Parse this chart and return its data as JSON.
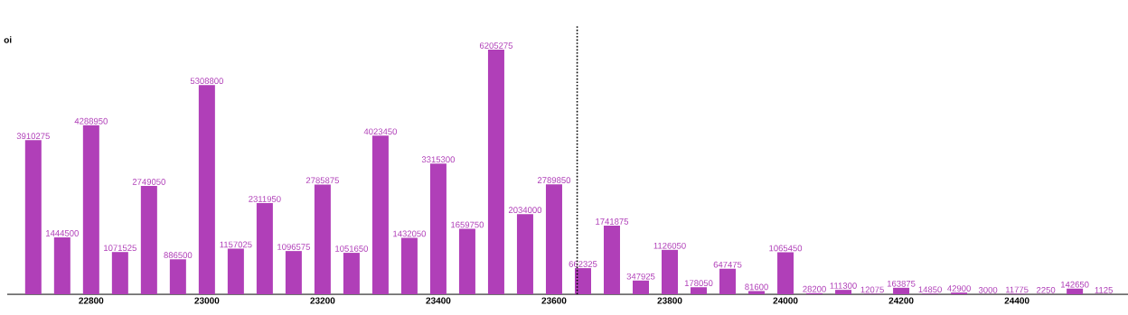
{
  "chart_data": {
    "type": "bar",
    "ylabel": "oi",
    "x": [
      22700,
      22750,
      22800,
      22850,
      22900,
      22950,
      23000,
      23050,
      23100,
      23150,
      23200,
      23250,
      23300,
      23350,
      23400,
      23450,
      23500,
      23550,
      23600,
      23650,
      23700,
      23750,
      23800,
      23850,
      23900,
      23950,
      24000,
      24050,
      24100,
      24150,
      24200,
      24250,
      24300,
      24350,
      24400,
      24450,
      24500,
      24550
    ],
    "values": [
      3910275,
      1444500,
      4288950,
      1071525,
      2749050,
      886500,
      5308800,
      1157025,
      2311950,
      1096575,
      2785875,
      1051650,
      4023450,
      1432050,
      3315300,
      1659750,
      6205275,
      2034000,
      2789850,
      662325,
      1741875,
      347925,
      1126050,
      178050,
      647475,
      81600,
      1065450,
      28200,
      111300,
      12075,
      163875,
      14850,
      42900,
      3000,
      11775,
      2250,
      142650,
      1125
    ],
    "color": "#b03fb8",
    "data_labels": true,
    "xlim": [
      22655,
      24592
    ],
    "xticks": [
      22800,
      23000,
      23200,
      23400,
      23600,
      23800,
      24000,
      24200,
      24400
    ],
    "tick_labels": "x",
    "ref_lines": [
      {
        "axis": "x",
        "value": 23640,
        "line_style": "dotted",
        "color": "#000000"
      }
    ]
  }
}
